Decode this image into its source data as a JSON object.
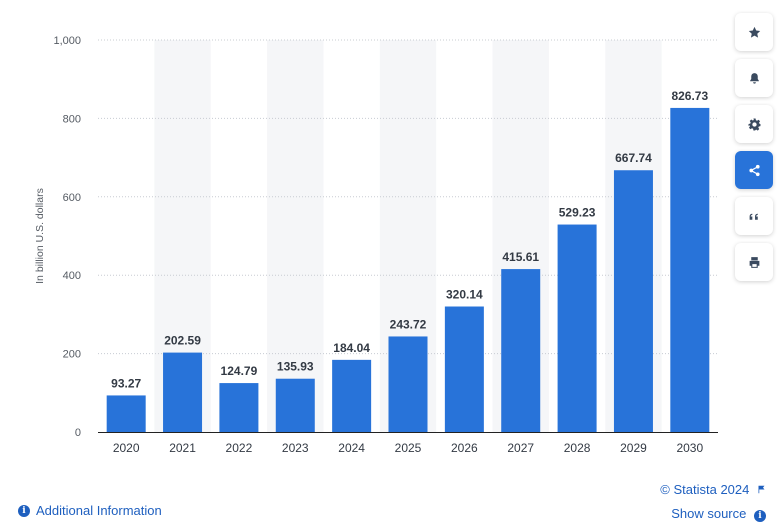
{
  "chart_data": {
    "type": "bar",
    "categories": [
      "2020",
      "2021",
      "2022",
      "2023",
      "2024",
      "2025",
      "2026",
      "2027",
      "2028",
      "2029",
      "2030"
    ],
    "values": [
      93.27,
      202.59,
      124.79,
      135.93,
      184.04,
      243.72,
      320.14,
      415.61,
      529.23,
      667.74,
      826.73
    ],
    "value_labels": [
      "93.27",
      "202.59",
      "124.79",
      "135.93",
      "184.04",
      "243.72",
      "320.14",
      "415.61",
      "529.23",
      "667.74",
      "826.73"
    ],
    "ylabel": "In billion U.S. dollars",
    "xlabel": "",
    "title": "",
    "ylim": [
      0,
      1000
    ],
    "yticks": [
      0,
      200,
      400,
      600,
      800,
      1000
    ],
    "ytick_labels": [
      "0",
      "200",
      "400",
      "600",
      "800",
      "1,000"
    ],
    "grid": true,
    "bar_color": "#2873d9",
    "band_color": "#f5f6f8"
  },
  "sidebar": {
    "buttons": [
      {
        "name": "favorite-button",
        "icon": "star-icon",
        "active": false
      },
      {
        "name": "notification-button",
        "icon": "bell-icon",
        "active": false
      },
      {
        "name": "settings-button",
        "icon": "gear-icon",
        "active": false
      },
      {
        "name": "share-button",
        "icon": "share-icon",
        "active": true
      },
      {
        "name": "cite-button",
        "icon": "quote-icon",
        "active": false
      },
      {
        "name": "print-button",
        "icon": "print-icon",
        "active": false
      }
    ]
  },
  "footer": {
    "info_icon": "i",
    "additional_info": "Additional Information",
    "copyright": "© Statista 2024",
    "show_source": "Show source"
  }
}
